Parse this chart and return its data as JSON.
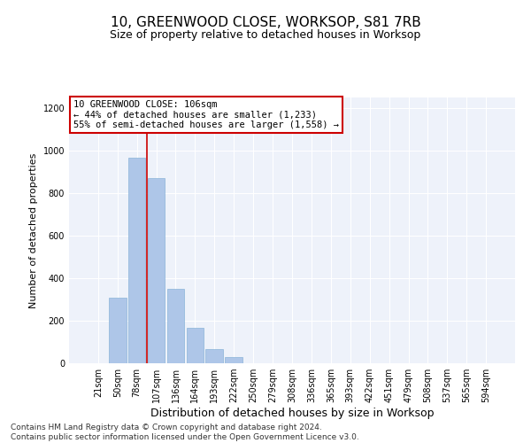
{
  "title": "10, GREENWOOD CLOSE, WORKSOP, S81 7RB",
  "subtitle": "Size of property relative to detached houses in Worksop",
  "xlabel": "Distribution of detached houses by size in Worksop",
  "ylabel": "Number of detached properties",
  "categories": [
    "21sqm",
    "50sqm",
    "78sqm",
    "107sqm",
    "136sqm",
    "164sqm",
    "193sqm",
    "222sqm",
    "250sqm",
    "279sqm",
    "308sqm",
    "336sqm",
    "365sqm",
    "393sqm",
    "422sqm",
    "451sqm",
    "479sqm",
    "508sqm",
    "537sqm",
    "565sqm",
    "594sqm"
  ],
  "values": [
    2,
    308,
    968,
    870,
    348,
    165,
    68,
    28,
    2,
    0,
    0,
    0,
    2,
    0,
    0,
    0,
    0,
    2,
    0,
    0,
    0
  ],
  "bar_color": "#aec6e8",
  "bar_edge_color": "#8ab4d8",
  "vline_x_index": 2.5,
  "vline_color": "#cc0000",
  "annotation_box_text": "10 GREENWOOD CLOSE: 106sqm\n← 44% of detached houses are smaller (1,233)\n55% of semi-detached houses are larger (1,558) →",
  "annotation_box_color": "#ffffff",
  "annotation_box_edge_color": "#cc0000",
  "ylim": [
    0,
    1250
  ],
  "yticks": [
    0,
    200,
    400,
    600,
    800,
    1000,
    1200
  ],
  "footer_text": "Contains HM Land Registry data © Crown copyright and database right 2024.\nContains public sector information licensed under the Open Government Licence v3.0.",
  "background_color": "#eef2fa",
  "grid_color": "#ffffff",
  "title_fontsize": 11,
  "subtitle_fontsize": 9,
  "xlabel_fontsize": 9,
  "ylabel_fontsize": 8,
  "tick_fontsize": 7,
  "annotation_fontsize": 7.5,
  "footer_fontsize": 6.5
}
